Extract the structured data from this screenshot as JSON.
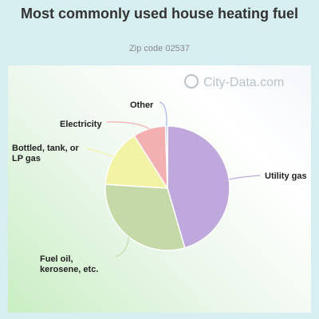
{
  "chart_data": {
    "type": "pie",
    "title": "Most commonly used house heating fuel",
    "subtitle": "Zip code 02537",
    "watermark": "City-Data.com",
    "slices": [
      {
        "label": "Utility gas",
        "value": 45.5,
        "color": "#bfa9dc"
      },
      {
        "label": "Fuel oil, kerosene, etc.",
        "value": 30.5,
        "color": "#c5d9a8"
      },
      {
        "label": "Bottled, tank, or LP gas",
        "value": 15.0,
        "color": "#f3f3a6"
      },
      {
        "label": "Electricity",
        "value": 8.5,
        "color": "#f3b0b0"
      },
      {
        "label": "Other",
        "value": 0.5,
        "color": "#a7b8ec"
      }
    ]
  }
}
